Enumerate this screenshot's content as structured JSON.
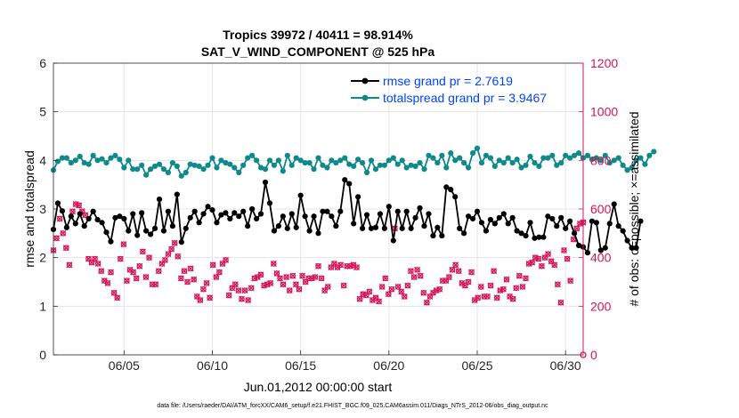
{
  "colors": {
    "rmse": "#000000",
    "spread": "#0f8a8a",
    "obs": "#d4145a",
    "legend_text": "#0044ff"
  },
  "chart_data": {
    "type": "line",
    "title": "Tropics 39972 / 40411 = 98.914%",
    "subtitle": "SAT_V_WIND_COMPONENT @ 525 hPa",
    "xlabel": "Jun.01,2012 00:00:00 start",
    "ylabel_left": "rmse and totalspread",
    "ylabel_right": "# of obs: o=possible; ×=assimilated",
    "x_start": 1.0,
    "x_step": 0.25,
    "xlim": [
      1.0,
      31.0
    ],
    "xticks": [
      5,
      10,
      15,
      20,
      25,
      30
    ],
    "xtick_labels": [
      "06/05",
      "06/10",
      "06/15",
      "06/20",
      "06/25",
      "06/30"
    ],
    "ylim_left": [
      0,
      6
    ],
    "yticks_left": [
      "0",
      "1",
      "2",
      "3",
      "4",
      "5",
      "6"
    ],
    "ylim_right": [
      0,
      1200
    ],
    "yticks_right": [
      "0",
      "200",
      "400",
      "600",
      "800",
      "1000",
      "1200"
    ],
    "legend": [
      {
        "label": "rmse grand pr = 2.7619"
      },
      {
        "label": "totalspread grand pr = 3.9467"
      }
    ],
    "series": [
      {
        "name": "rmse",
        "values": [
          2.58,
          3.12,
          2.96,
          2.62,
          2.85,
          2.7,
          2.9,
          2.65,
          2.8,
          2.95,
          2.78,
          2.72,
          2.52,
          2.33,
          2.82,
          2.85,
          2.8,
          2.55,
          2.9,
          2.46,
          2.92,
          2.55,
          2.48,
          2.6,
          3.2,
          2.55,
          2.95,
          2.65,
          3.3,
          2.32,
          2.6,
          2.82,
          2.95,
          2.72,
          2.9,
          3.05,
          2.98,
          2.72,
          2.88,
          2.92,
          2.8,
          2.92,
          2.85,
          2.95,
          2.65,
          3.0,
          2.8,
          2.9,
          3.55,
          3.12,
          2.55,
          2.65,
          2.85,
          2.6,
          2.9,
          2.62,
          3.28,
          2.85,
          2.55,
          2.85,
          2.5,
          2.95,
          2.95,
          2.85,
          2.65,
          2.95,
          3.6,
          3.52,
          2.7,
          3.25,
          2.6,
          2.88,
          2.6,
          2.62,
          2.9,
          2.6,
          3.05,
          2.35,
          2.95,
          2.6,
          2.95,
          2.6,
          2.82,
          3.02,
          2.65,
          2.9,
          2.45,
          2.62,
          2.45,
          3.45,
          3.4,
          3.25,
          2.6,
          2.5,
          2.85,
          2.8,
          2.95,
          2.72,
          2.55,
          2.78,
          2.7,
          2.82,
          2.9,
          2.7,
          2.82,
          2.55,
          2.5,
          2.45,
          2.72,
          2.4,
          2.42,
          2.42,
          2.85,
          2.8,
          2.65,
          2.82,
          2.6,
          2.75,
          2.5,
          2.25,
          2.22,
          2.1,
          2.75,
          2.72,
          2.15,
          2.2,
          2.7,
          3.1,
          2.65,
          2.55,
          2.35,
          2.2,
          2.2,
          2.75
        ]
      },
      {
        "name": "totalspread",
        "values": [
          3.8,
          3.98,
          4.05,
          4.05,
          3.95,
          4.0,
          4.08,
          3.95,
          3.92,
          4.1,
          4.0,
          4.03,
          3.95,
          4.05,
          4.1,
          4.02,
          3.85,
          4.0,
          3.82,
          3.82,
          3.9,
          3.7,
          3.82,
          3.88,
          3.92,
          3.82,
          3.75,
          3.95,
          3.88,
          3.68,
          3.75,
          3.92,
          3.9,
          3.88,
          3.82,
          3.9,
          4.05,
          3.85,
          4.0,
          3.95,
          3.92,
          3.85,
          3.75,
          3.9,
          4.05,
          4.1,
          4.0,
          3.85,
          3.82,
          4.0,
          3.9,
          4.0,
          3.78,
          4.1,
          3.9,
          4.05,
          4.0,
          3.95,
          3.95,
          3.82,
          4.05,
          3.9,
          3.85,
          4.0,
          3.95,
          4.0,
          4.05,
          3.92,
          3.88,
          4.02,
          3.95,
          3.75,
          4.0,
          3.82,
          3.9,
          3.9,
          4.0,
          4.05,
          3.92,
          4.0,
          3.85,
          3.9,
          3.88,
          3.95,
          3.82,
          4.1,
          4.05,
          3.95,
          4.1,
          3.85,
          4.15,
          4.0,
          4.05,
          3.95,
          3.85,
          4.15,
          4.25,
          3.95,
          4.1,
          4.05,
          3.88,
          4.0,
          3.95,
          4.05,
          3.95,
          4.02,
          3.85,
          3.9,
          4.08,
          3.95,
          3.88,
          4.05,
          4.05,
          4.1,
          3.9,
          3.95,
          4.1,
          4.05,
          4.1,
          4.15,
          4.05,
          4.1,
          4.02,
          4.05,
          4.0,
          4.1,
          3.95,
          4.0,
          4.05,
          3.9,
          3.8,
          3.85,
          4.0,
          4.05,
          3.92,
          4.1,
          4.18
        ]
      },
      {
        "name": "obs_possible",
        "values": [
          430,
          480,
          560,
          500,
          440,
          370,
          590,
          620,
          615,
          590,
          575,
          395,
          380,
          395,
          375,
          345,
          305,
          295,
          340,
          255,
          235,
          395,
          455,
          305,
          350,
          340,
          315,
          365,
          425,
          320,
          400,
          290,
          290,
          345,
          375,
          390,
          415,
          435,
          460,
          405,
          315,
          345,
          300,
          355,
          310,
          240,
          225,
          270,
          295,
          235,
          370,
          320,
          340,
          375,
          390,
          245,
          275,
          290,
          265,
          230,
          265,
          225,
          275,
          315,
          320,
          330,
          285,
          290,
          295,
          375,
          335,
          315,
          290,
          320,
          265,
          325,
          290,
          270,
          325,
          300,
          315,
          315,
          320,
          365,
          315,
          265,
          280,
          360,
          375,
          360,
          370,
          285,
          365,
          365,
          370,
          360,
          230,
          250,
          245,
          260,
          225,
          235,
          220,
          280,
          315,
          250,
          270,
          520,
          280,
          260,
          240,
          285,
          345,
          320,
          350,
          325,
          255,
          215,
          240,
          255,
          265,
          270,
          305,
          305,
          320,
          350,
          370,
          345,
          295,
          285,
          300,
          340,
          225,
          235,
          280,
          240,
          240,
          285,
          345,
          235,
          265,
          270,
          310,
          240,
          230,
          275,
          325,
          280,
          315,
          375,
          380,
          400,
          395,
          365,
          400,
          415,
          385,
          370,
          290,
          215,
          430,
          395,
          305,
          475,
          520,
          540,
          545
        ]
      }
    ]
  },
  "footnote": "data file: /Users/raeder/DAI/ATM_forcXX/CAM6_setup/f.e21.FHIST_BGC.f09_025.CAM6assim.011/Diags_NTrS_2012-06/obs_diag_output.nc"
}
